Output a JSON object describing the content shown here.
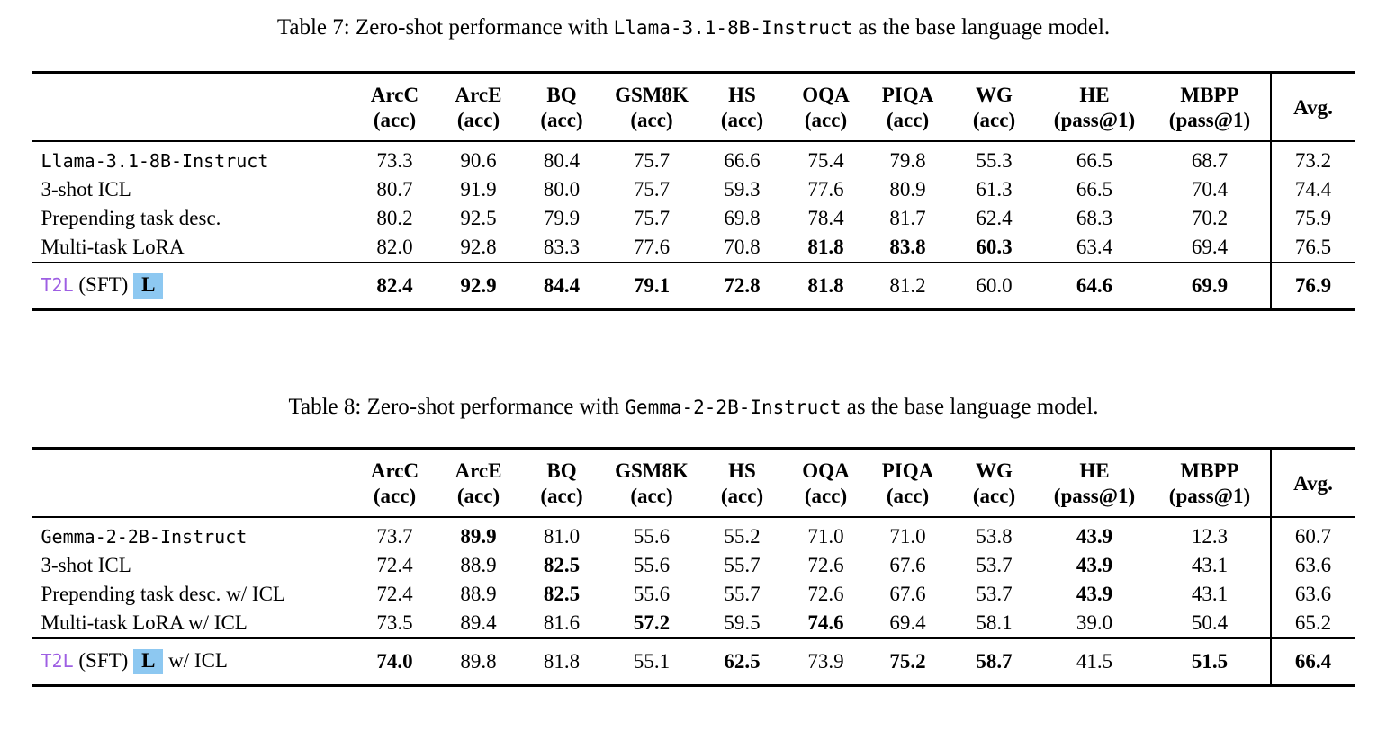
{
  "colors": {
    "t2l_purple": "#9E5FE3",
    "highlight_blue": "#8DC8F1",
    "text": "#000000"
  },
  "tables": [
    {
      "caption": {
        "prefix": "Table 7: Zero-shot performance with ",
        "model": "Llama-3.1-8B-Instruct",
        "suffix": " as the base language model."
      },
      "columns": [
        {
          "name": "ArcC",
          "metric": "(acc)"
        },
        {
          "name": "ArcE",
          "metric": "(acc)"
        },
        {
          "name": "BQ",
          "metric": "(acc)"
        },
        {
          "name": "GSM8K",
          "metric": "(acc)"
        },
        {
          "name": "HS",
          "metric": "(acc)"
        },
        {
          "name": "OQA",
          "metric": "(acc)"
        },
        {
          "name": "PIQA",
          "metric": "(acc)"
        },
        {
          "name": "WG",
          "metric": "(acc)"
        },
        {
          "name": "HE",
          "metric": "(pass@1)"
        },
        {
          "name": "MBPP",
          "metric": "(pass@1)"
        },
        {
          "name": "Avg.",
          "metric": ""
        }
      ],
      "rows": [
        {
          "label": [
            {
              "text": "Llama-3.1-8B-Instruct",
              "style": "mono"
            }
          ],
          "values": [
            "73.3",
            "90.6",
            "80.4",
            "75.7",
            "66.6",
            "75.4",
            "79.8",
            "55.3",
            "66.5",
            "68.7",
            "73.2"
          ],
          "bold": [
            0,
            0,
            0,
            0,
            0,
            0,
            0,
            0,
            0,
            0,
            0
          ]
        },
        {
          "label": [
            {
              "text": "3-shot ICL",
              "style": "plain"
            }
          ],
          "values": [
            "80.7",
            "91.9",
            "80.0",
            "75.7",
            "59.3",
            "77.6",
            "80.9",
            "61.3",
            "66.5",
            "70.4",
            "74.4"
          ],
          "bold": [
            0,
            0,
            0,
            0,
            0,
            0,
            0,
            0,
            0,
            0,
            0
          ]
        },
        {
          "label": [
            {
              "text": "Prepending task desc.",
              "style": "plain"
            }
          ],
          "values": [
            "80.2",
            "92.5",
            "79.9",
            "75.7",
            "69.8",
            "78.4",
            "81.7",
            "62.4",
            "68.3",
            "70.2",
            "75.9"
          ],
          "bold": [
            0,
            0,
            0,
            0,
            0,
            0,
            0,
            0,
            0,
            0,
            0
          ]
        },
        {
          "label": [
            {
              "text": "Multi-task LoRA",
              "style": "plain"
            }
          ],
          "values": [
            "82.0",
            "92.8",
            "83.3",
            "77.6",
            "70.8",
            "81.8",
            "83.8",
            "60.3",
            "63.4",
            "69.4",
            "76.5"
          ],
          "bold": [
            0,
            0,
            0,
            0,
            0,
            1,
            1,
            1,
            0,
            0,
            0
          ]
        }
      ],
      "highlight_row": {
        "label": [
          {
            "text": "T2L",
            "style": "mono-purple"
          },
          {
            "text": " (SFT) ",
            "style": "plain"
          },
          {
            "text": "L",
            "style": "badge"
          }
        ],
        "values": [
          "82.4",
          "92.9",
          "84.4",
          "79.1",
          "72.8",
          "81.8",
          "81.2",
          "60.0",
          "64.6",
          "69.9",
          "76.9"
        ],
        "bold": [
          1,
          1,
          1,
          1,
          1,
          1,
          0,
          0,
          1,
          1,
          1
        ]
      }
    },
    {
      "caption": {
        "prefix": "Table 8: Zero-shot performance with ",
        "model": "Gemma-2-2B-Instruct",
        "suffix": " as the base language model."
      },
      "columns": [
        {
          "name": "ArcC",
          "metric": "(acc)"
        },
        {
          "name": "ArcE",
          "metric": "(acc)"
        },
        {
          "name": "BQ",
          "metric": "(acc)"
        },
        {
          "name": "GSM8K",
          "metric": "(acc)"
        },
        {
          "name": "HS",
          "metric": "(acc)"
        },
        {
          "name": "OQA",
          "metric": "(acc)"
        },
        {
          "name": "PIQA",
          "metric": "(acc)"
        },
        {
          "name": "WG",
          "metric": "(acc)"
        },
        {
          "name": "HE",
          "metric": "(pass@1)"
        },
        {
          "name": "MBPP",
          "metric": "(pass@1)"
        },
        {
          "name": "Avg.",
          "metric": ""
        }
      ],
      "rows": [
        {
          "label": [
            {
              "text": "Gemma-2-2B-Instruct",
              "style": "mono"
            }
          ],
          "values": [
            "73.7",
            "89.9",
            "81.0",
            "55.6",
            "55.2",
            "71.0",
            "71.0",
            "53.8",
            "43.9",
            "12.3",
            "60.7"
          ],
          "bold": [
            0,
            1,
            0,
            0,
            0,
            0,
            0,
            0,
            1,
            0,
            0
          ]
        },
        {
          "label": [
            {
              "text": "3-shot ICL",
              "style": "plain"
            }
          ],
          "values": [
            "72.4",
            "88.9",
            "82.5",
            "55.6",
            "55.7",
            "72.6",
            "67.6",
            "53.7",
            "43.9",
            "43.1",
            "63.6"
          ],
          "bold": [
            0,
            0,
            1,
            0,
            0,
            0,
            0,
            0,
            1,
            0,
            0
          ]
        },
        {
          "label": [
            {
              "text": "Prepending task desc. w/ ICL",
              "style": "plain"
            }
          ],
          "values": [
            "72.4",
            "88.9",
            "82.5",
            "55.6",
            "55.7",
            "72.6",
            "67.6",
            "53.7",
            "43.9",
            "43.1",
            "63.6"
          ],
          "bold": [
            0,
            0,
            1,
            0,
            0,
            0,
            0,
            0,
            1,
            0,
            0
          ]
        },
        {
          "label": [
            {
              "text": "Multi-task LoRA w/ ICL",
              "style": "plain"
            }
          ],
          "values": [
            "73.5",
            "89.4",
            "81.6",
            "57.2",
            "59.5",
            "74.6",
            "69.4",
            "58.1",
            "39.0",
            "50.4",
            "65.2"
          ],
          "bold": [
            0,
            0,
            0,
            1,
            0,
            1,
            0,
            0,
            0,
            0,
            0
          ]
        }
      ],
      "highlight_row": {
        "label": [
          {
            "text": "T2L",
            "style": "mono-purple"
          },
          {
            "text": " (SFT) ",
            "style": "plain"
          },
          {
            "text": "L",
            "style": "badge"
          },
          {
            "text": " w/ ICL",
            "style": "plain"
          }
        ],
        "values": [
          "74.0",
          "89.8",
          "81.8",
          "55.1",
          "62.5",
          "73.9",
          "75.2",
          "58.7",
          "41.5",
          "51.5",
          "66.4"
        ],
        "bold": [
          1,
          0,
          0,
          0,
          1,
          0,
          1,
          1,
          0,
          1,
          1
        ]
      }
    }
  ]
}
